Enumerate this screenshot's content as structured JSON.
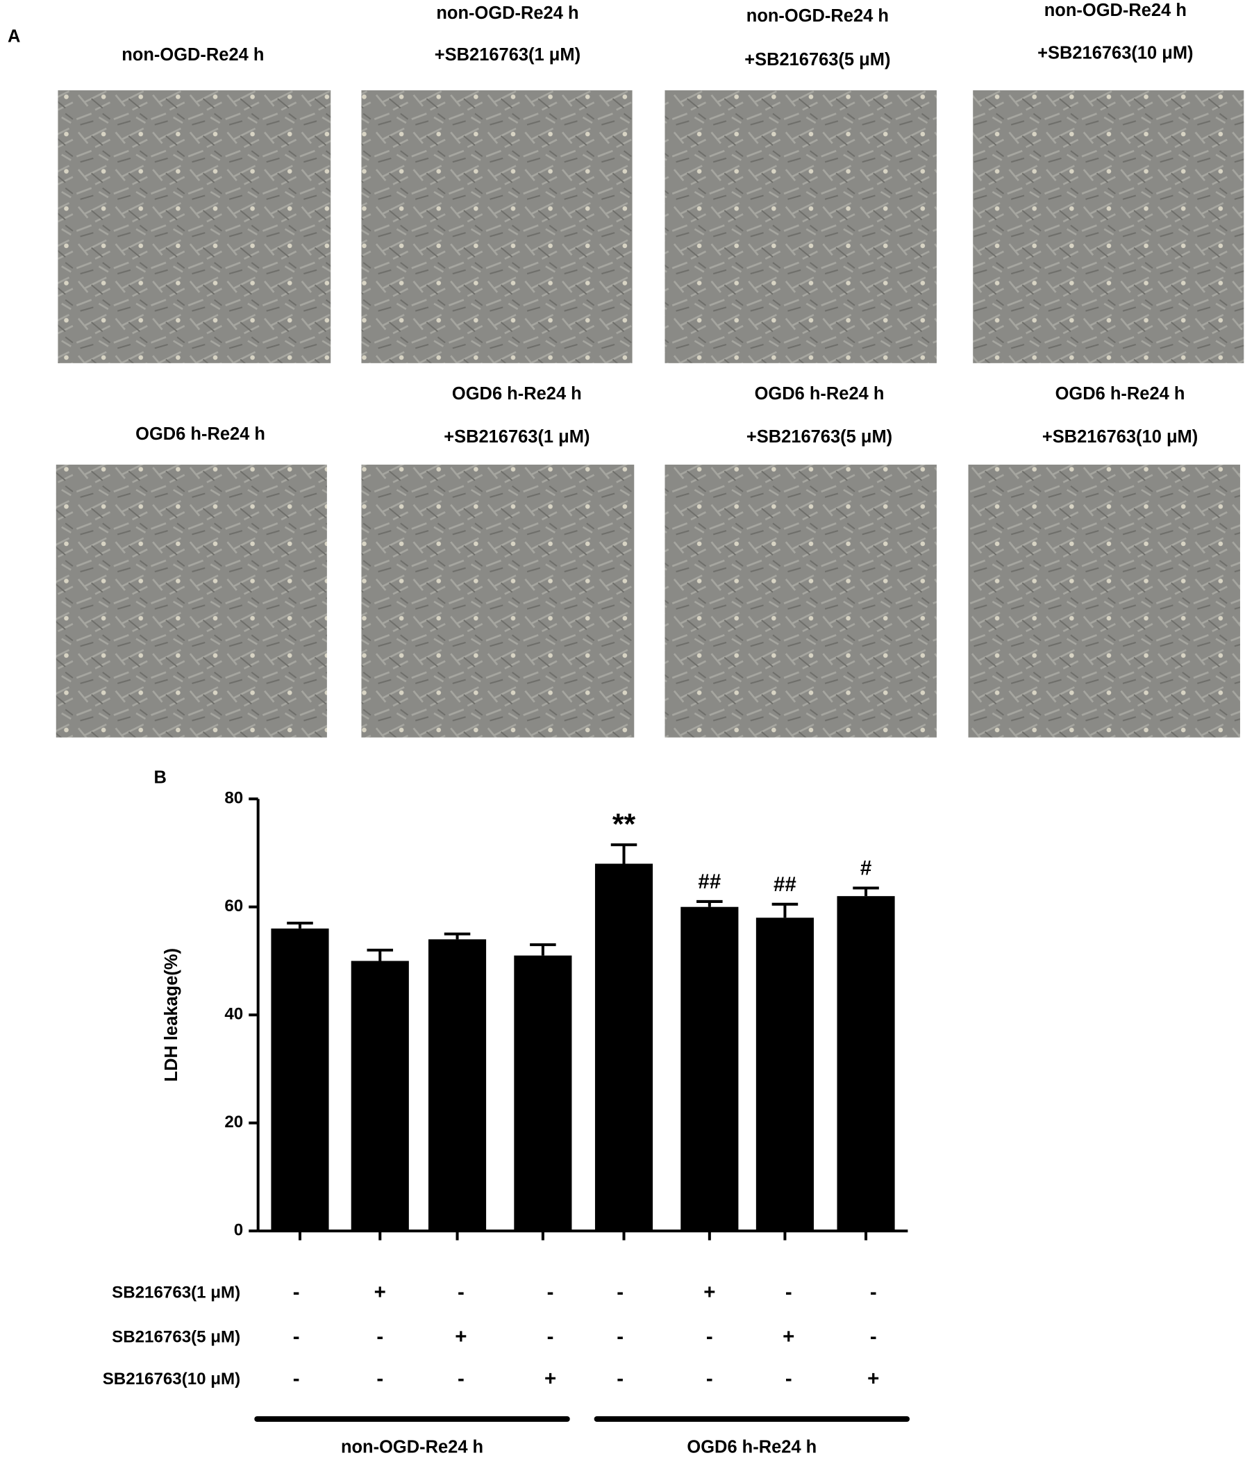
{
  "panel_a": {
    "label": "A",
    "rows": [
      [
        [
          "non-OGD-Re24 h"
        ],
        [
          "non-OGD-Re24 h",
          "+SB216763(1 μM)"
        ],
        [
          "non-OGD-Re24 h",
          "+SB216763(5 μM)"
        ],
        [
          "non-OGD-Re24 h",
          "+SB216763(10 μM)"
        ]
      ],
      [
        [
          "OGD6 h-Re24 h"
        ],
        [
          "OGD6 h-Re24 h",
          "+SB216763(1 μM)"
        ],
        [
          "OGD6 h-Re24 h",
          "+SB216763(5 μM)"
        ],
        [
          "OGD6 h-Re24 h",
          "+SB216763(10 μM)"
        ]
      ]
    ]
  },
  "chart_data": {
    "type": "bar",
    "panel_label": "B",
    "ylabel": "LDH leakage(%)",
    "categories": [
      null,
      null,
      null,
      null,
      null,
      null,
      null,
      null
    ],
    "values": [
      56,
      50,
      54,
      51,
      68,
      60,
      58,
      62
    ],
    "errors": [
      1,
      2,
      1,
      2,
      3.5,
      1,
      2.5,
      1.5
    ],
    "significance": [
      null,
      null,
      null,
      null,
      "**",
      "##",
      "##",
      "#"
    ],
    "color": "#000000",
    "ylim": [
      0,
      80
    ],
    "yticks": [
      0,
      20,
      40,
      60,
      80
    ],
    "treatment_rows": [
      {
        "label": "SB216763(1 μM)",
        "signs": [
          "-",
          "+",
          "-",
          "-",
          "-",
          "+",
          "-",
          "-"
        ]
      },
      {
        "label": "SB216763(5 μM)",
        "signs": [
          "-",
          "-",
          "+",
          "-",
          "-",
          "-",
          "+",
          "-"
        ]
      },
      {
        "label": "SB216763(10 μM)",
        "signs": [
          "-",
          "-",
          "-",
          "+",
          "-",
          "-",
          "-",
          "+"
        ]
      }
    ],
    "groups": [
      "non-OGD-Re24 h",
      "OGD6 h-Re24 h"
    ]
  }
}
